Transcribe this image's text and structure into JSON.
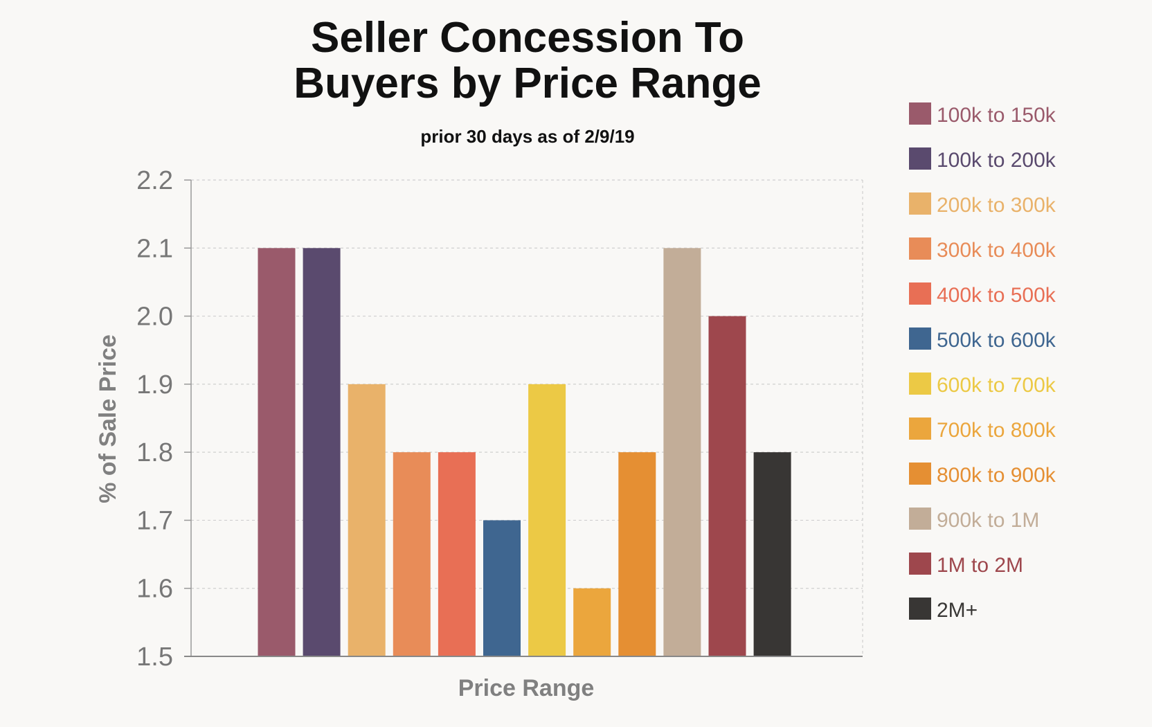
{
  "chart_data": {
    "type": "bar",
    "title_line1": "Seller Concession To",
    "title_line2": "Buyers by Price Range",
    "subtitle": "prior 30 days as of 2/9/19",
    "xlabel": "Price Range",
    "ylabel": "% of Sale Price",
    "ylim": [
      1.5,
      2.2
    ],
    "yticks": [
      "1.5",
      "1.6",
      "1.7",
      "1.8",
      "1.9",
      "2.0",
      "2.1",
      "2.2"
    ],
    "grid": true,
    "legend_position": "right",
    "categories": [
      "100k to 150k",
      "100k to 200k",
      "200k to 300k",
      "300k to 400k",
      "400k to 500k",
      "500k to 600k",
      "600k to 700k",
      "700k to 800k",
      "800k to 900k",
      "900k to 1M",
      "1M to 2M",
      "2M+"
    ],
    "values": [
      2.1,
      2.1,
      1.9,
      1.8,
      1.8,
      1.7,
      1.9,
      1.6,
      1.8,
      2.1,
      2.0,
      1.8
    ],
    "colors": [
      "#9a5a6b",
      "#5a4a6e",
      "#e9b26a",
      "#e88c58",
      "#e86f55",
      "#3f6690",
      "#ecc945",
      "#eba63d",
      "#e58f33",
      "#c2ad98",
      "#9e474d",
      "#383634"
    ]
  }
}
